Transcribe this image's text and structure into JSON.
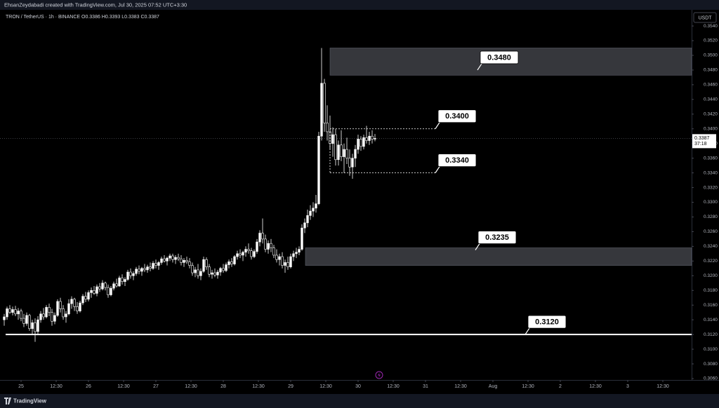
{
  "header": {
    "credit": "EhsanZeydabadi created with TradingView.com, Jul 30, 2025 07:52 UTC+3:30"
  },
  "footer": {
    "logo": "TradingView"
  },
  "chart_data": {
    "type": "candlestick",
    "title": "TRON / TetherUS · 1h · BINANCE  O0.3386 H0.3393 L0.3383 C0.3387",
    "currency": "USDT",
    "countdown": "37:18",
    "last": {
      "value": 0.3387,
      "label": "0.3387"
    },
    "xlim": [
      -1.5,
      244.75
    ],
    "xticks": [
      {
        "value": 6,
        "label": "25"
      },
      {
        "value": 18.5,
        "label": "12:30"
      },
      {
        "value": 30,
        "label": "26"
      },
      {
        "value": 42.5,
        "label": "12:30"
      },
      {
        "value": 54,
        "label": "27"
      },
      {
        "value": 66.5,
        "label": "12:30"
      },
      {
        "value": 78,
        "label": "28"
      },
      {
        "value": 90.5,
        "label": "12:30"
      },
      {
        "value": 102,
        "label": "29"
      },
      {
        "value": 114.5,
        "label": "12:30"
      },
      {
        "value": 126,
        "label": "30"
      },
      {
        "value": 138.5,
        "label": "12:30"
      },
      {
        "value": 150,
        "label": "31"
      },
      {
        "value": 162.5,
        "label": "12:30"
      },
      {
        "value": 174,
        "label": "Aug"
      },
      {
        "value": 186.5,
        "label": "12:30"
      },
      {
        "value": 198,
        "label": "2"
      },
      {
        "value": 210.5,
        "label": "12:30"
      },
      {
        "value": 222,
        "label": "3"
      },
      {
        "value": 234.5,
        "label": "12:30"
      }
    ],
    "ylim": [
      0.30581,
      0.3562
    ],
    "yticks": [
      {
        "value": 0.306,
        "label": "0.3060"
      },
      {
        "value": 0.308,
        "label": "0.3080"
      },
      {
        "value": 0.31,
        "label": "0.3100"
      },
      {
        "value": 0.312,
        "label": "0.3120"
      },
      {
        "value": 0.314,
        "label": "0.3140"
      },
      {
        "value": 0.316,
        "label": "0.3160"
      },
      {
        "value": 0.318,
        "label": "0.3180"
      },
      {
        "value": 0.32,
        "label": "0.3200"
      },
      {
        "value": 0.322,
        "label": "0.3220"
      },
      {
        "value": 0.324,
        "label": "0.3240"
      },
      {
        "value": 0.326,
        "label": "0.3260"
      },
      {
        "value": 0.328,
        "label": "0.3280"
      },
      {
        "value": 0.33,
        "label": "0.3300"
      },
      {
        "value": 0.332,
        "label": "0.3320"
      },
      {
        "value": 0.334,
        "label": "0.3340"
      },
      {
        "value": 0.336,
        "label": "0.3360"
      },
      {
        "value": 0.338,
        "label": "0.3380"
      },
      {
        "value": 0.34,
        "label": "0.3400"
      },
      {
        "value": 0.342,
        "label": "0.3420"
      },
      {
        "value": 0.344,
        "label": "0.3440"
      },
      {
        "value": 0.346,
        "label": "0.3460"
      },
      {
        "value": 0.348,
        "label": "0.3480"
      },
      {
        "value": 0.35,
        "label": "0.3500"
      },
      {
        "value": 0.352,
        "label": "0.3520"
      },
      {
        "value": 0.354,
        "label": "0.3540"
      }
    ],
    "levels": [
      {
        "value": 0.348,
        "label": "0.3480",
        "zone": [
          0.3473,
          0.351
        ]
      },
      {
        "value": 0.34,
        "label": "0.3400",
        "style": "dashed"
      },
      {
        "value": 0.334,
        "label": "0.3340",
        "style": "dashed"
      },
      {
        "value": 0.3235,
        "label": "0.3235",
        "zone": [
          0.3214,
          0.3238
        ]
      },
      {
        "value": 0.312,
        "label": "0.3120",
        "style": "solid"
      }
    ],
    "candles": [
      [
        0.314,
        0.3148,
        0.3132,
        0.3144
      ],
      [
        0.3144,
        0.3158,
        0.314,
        0.3155
      ],
      [
        0.3155,
        0.316,
        0.3148,
        0.315
      ],
      [
        0.315,
        0.3158,
        0.3146,
        0.3154
      ],
      [
        0.3154,
        0.3159,
        0.3145,
        0.3148
      ],
      [
        0.3148,
        0.3156,
        0.314,
        0.3152
      ],
      [
        0.3152,
        0.3155,
        0.3138,
        0.3142
      ],
      [
        0.3142,
        0.3148,
        0.313,
        0.3135
      ],
      [
        0.3135,
        0.315,
        0.3132,
        0.3146
      ],
      [
        0.3146,
        0.3148,
        0.3125,
        0.3128
      ],
      [
        0.3128,
        0.314,
        0.312,
        0.3136
      ],
      [
        0.3136,
        0.3142,
        0.311,
        0.3124
      ],
      [
        0.3124,
        0.3145,
        0.312,
        0.314
      ],
      [
        0.314,
        0.3152,
        0.3136,
        0.3148
      ],
      [
        0.3148,
        0.3156,
        0.314,
        0.3144
      ],
      [
        0.3144,
        0.316,
        0.3142,
        0.3157
      ],
      [
        0.3157,
        0.3162,
        0.3145,
        0.315
      ],
      [
        0.315,
        0.3155,
        0.3132,
        0.3138
      ],
      [
        0.3138,
        0.315,
        0.3134,
        0.3146
      ],
      [
        0.3146,
        0.3168,
        0.3144,
        0.3165
      ],
      [
        0.3165,
        0.317,
        0.315,
        0.3155
      ],
      [
        0.3155,
        0.316,
        0.314,
        0.3144
      ],
      [
        0.3144,
        0.3152,
        0.3136,
        0.3148
      ],
      [
        0.3148,
        0.3168,
        0.3146,
        0.3162
      ],
      [
        0.3162,
        0.3172,
        0.3155,
        0.3168
      ],
      [
        0.3168,
        0.317,
        0.3152,
        0.3158
      ],
      [
        0.3158,
        0.3164,
        0.3148,
        0.3152
      ],
      [
        0.3152,
        0.3166,
        0.315,
        0.3163
      ],
      [
        0.3163,
        0.3175,
        0.316,
        0.3172
      ],
      [
        0.3172,
        0.3178,
        0.3164,
        0.3168
      ],
      [
        0.3168,
        0.318,
        0.3165,
        0.3177
      ],
      [
        0.3177,
        0.3184,
        0.317,
        0.318
      ],
      [
        0.318,
        0.3186,
        0.3174,
        0.3176
      ],
      [
        0.3176,
        0.3188,
        0.3172,
        0.3185
      ],
      [
        0.3185,
        0.319,
        0.3178,
        0.3182
      ],
      [
        0.3182,
        0.3194,
        0.318,
        0.319
      ],
      [
        0.319,
        0.3192,
        0.318,
        0.3184
      ],
      [
        0.3184,
        0.3188,
        0.317,
        0.3174
      ],
      [
        0.3174,
        0.3186,
        0.3172,
        0.3183
      ],
      [
        0.3183,
        0.3192,
        0.318,
        0.3189
      ],
      [
        0.3189,
        0.3196,
        0.3184,
        0.3186
      ],
      [
        0.3186,
        0.32,
        0.3185,
        0.3197
      ],
      [
        0.3197,
        0.3202,
        0.3188,
        0.3192
      ],
      [
        0.3192,
        0.3198,
        0.3186,
        0.3195
      ],
      [
        0.3195,
        0.3208,
        0.3193,
        0.3205
      ],
      [
        0.3205,
        0.321,
        0.3196,
        0.32
      ],
      [
        0.32,
        0.3206,
        0.3194,
        0.3203
      ],
      [
        0.3203,
        0.3212,
        0.32,
        0.3209
      ],
      [
        0.3209,
        0.3214,
        0.3202,
        0.3206
      ],
      [
        0.3206,
        0.3212,
        0.32,
        0.321
      ],
      [
        0.321,
        0.3216,
        0.3205,
        0.3208
      ],
      [
        0.3208,
        0.3215,
        0.3204,
        0.3212
      ],
      [
        0.3212,
        0.3218,
        0.3206,
        0.321
      ],
      [
        0.321,
        0.322,
        0.3208,
        0.3217
      ],
      [
        0.3217,
        0.3222,
        0.321,
        0.3214
      ],
      [
        0.3214,
        0.322,
        0.3208,
        0.3218
      ],
      [
        0.3218,
        0.3226,
        0.3215,
        0.3223
      ],
      [
        0.3223,
        0.3228,
        0.3218,
        0.322
      ],
      [
        0.322,
        0.3226,
        0.3214,
        0.3224
      ],
      [
        0.3224,
        0.323,
        0.322,
        0.3227
      ],
      [
        0.3227,
        0.323,
        0.3218,
        0.3222
      ],
      [
        0.3222,
        0.3228,
        0.3216,
        0.3225
      ],
      [
        0.3225,
        0.323,
        0.322,
        0.3223
      ],
      [
        0.3223,
        0.3228,
        0.3214,
        0.3218
      ],
      [
        0.3218,
        0.3224,
        0.3212,
        0.3221
      ],
      [
        0.3221,
        0.3226,
        0.3216,
        0.3219
      ],
      [
        0.3219,
        0.3224,
        0.321,
        0.3214
      ],
      [
        0.3214,
        0.3218,
        0.32,
        0.3204
      ],
      [
        0.3204,
        0.3212,
        0.3198,
        0.3208
      ],
      [
        0.3208,
        0.3216,
        0.3196,
        0.32
      ],
      [
        0.32,
        0.321,
        0.3194,
        0.3206
      ],
      [
        0.3206,
        0.3226,
        0.3204,
        0.3222
      ],
      [
        0.3222,
        0.3225,
        0.3208,
        0.3212
      ],
      [
        0.3212,
        0.3216,
        0.3198,
        0.3202
      ],
      [
        0.3202,
        0.3208,
        0.3196,
        0.3204
      ],
      [
        0.3204,
        0.321,
        0.3198,
        0.3201
      ],
      [
        0.3201,
        0.3208,
        0.3196,
        0.3205
      ],
      [
        0.3205,
        0.3212,
        0.32,
        0.321
      ],
      [
        0.321,
        0.3216,
        0.3204,
        0.3207
      ],
      [
        0.3207,
        0.3218,
        0.3205,
        0.3215
      ],
      [
        0.3215,
        0.3222,
        0.321,
        0.3219
      ],
      [
        0.3219,
        0.3224,
        0.3212,
        0.3216
      ],
      [
        0.3216,
        0.3228,
        0.3214,
        0.3226
      ],
      [
        0.3226,
        0.3234,
        0.3222,
        0.323
      ],
      [
        0.323,
        0.3236,
        0.3224,
        0.3228
      ],
      [
        0.3228,
        0.3234,
        0.322,
        0.3232
      ],
      [
        0.3232,
        0.324,
        0.3226,
        0.3236
      ],
      [
        0.3236,
        0.3244,
        0.323,
        0.3234
      ],
      [
        0.3234,
        0.3238,
        0.3222,
        0.3226
      ],
      [
        0.3226,
        0.3236,
        0.3224,
        0.3233
      ],
      [
        0.3233,
        0.325,
        0.323,
        0.3246
      ],
      [
        0.3246,
        0.3262,
        0.324,
        0.3258
      ],
      [
        0.3258,
        0.3278,
        0.3244,
        0.325
      ],
      [
        0.325,
        0.3256,
        0.3232,
        0.3236
      ],
      [
        0.3236,
        0.3248,
        0.323,
        0.3244
      ],
      [
        0.3244,
        0.325,
        0.3232,
        0.3238
      ],
      [
        0.3238,
        0.3242,
        0.3224,
        0.3228
      ],
      [
        0.3228,
        0.3236,
        0.3218,
        0.3222
      ],
      [
        0.3222,
        0.323,
        0.3214,
        0.3226
      ],
      [
        0.3226,
        0.3232,
        0.321,
        0.3214
      ],
      [
        0.3214,
        0.3222,
        0.3204,
        0.3218
      ],
      [
        0.3218,
        0.3226,
        0.3208,
        0.3212
      ],
      [
        0.3212,
        0.323,
        0.321,
        0.3226
      ],
      [
        0.3226,
        0.3234,
        0.322,
        0.323
      ],
      [
        0.323,
        0.3238,
        0.3224,
        0.3232
      ],
      [
        0.3232,
        0.324,
        0.3228,
        0.3236
      ],
      [
        0.3236,
        0.327,
        0.3234,
        0.3265
      ],
      [
        0.3265,
        0.3278,
        0.3258,
        0.3272
      ],
      [
        0.3272,
        0.329,
        0.3266,
        0.3282
      ],
      [
        0.3282,
        0.3296,
        0.3276,
        0.3288
      ],
      [
        0.3288,
        0.33,
        0.328,
        0.3292
      ],
      [
        0.3292,
        0.331,
        0.3286,
        0.3298
      ],
      [
        0.3298,
        0.3396,
        0.3296,
        0.339
      ],
      [
        0.339,
        0.351,
        0.3384,
        0.3462
      ],
      [
        0.3462,
        0.3468,
        0.3396,
        0.3408
      ],
      [
        0.3408,
        0.3432,
        0.3384,
        0.3396
      ],
      [
        0.3396,
        0.3418,
        0.3372,
        0.338
      ],
      [
        0.338,
        0.3402,
        0.3362,
        0.3392
      ],
      [
        0.3392,
        0.34,
        0.335,
        0.3358
      ],
      [
        0.3358,
        0.3384,
        0.335,
        0.3378
      ],
      [
        0.3378,
        0.3398,
        0.3356,
        0.3362
      ],
      [
        0.3362,
        0.338,
        0.334,
        0.3372
      ],
      [
        0.3372,
        0.3388,
        0.3352,
        0.336
      ],
      [
        0.336,
        0.3372,
        0.3336,
        0.3348
      ],
      [
        0.3348,
        0.3366,
        0.3332,
        0.336
      ],
      [
        0.336,
        0.3378,
        0.3348,
        0.3372
      ],
      [
        0.3372,
        0.3392,
        0.3366,
        0.3386
      ],
      [
        0.3386,
        0.339,
        0.337,
        0.3376
      ],
      [
        0.3376,
        0.3392,
        0.3372,
        0.3388
      ],
      [
        0.3388,
        0.3404,
        0.338,
        0.3384
      ],
      [
        0.3384,
        0.3396,
        0.3378,
        0.339
      ],
      [
        0.339,
        0.3398,
        0.338,
        0.3386
      ],
      [
        0.3386,
        0.3393,
        0.3383,
        0.3387
      ]
    ]
  }
}
